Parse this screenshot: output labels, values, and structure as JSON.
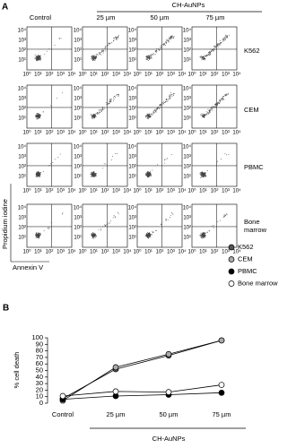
{
  "panel_a": {
    "label": "A",
    "group_header": "CH-AuNPs",
    "columns": [
      "Control",
      "25 µm",
      "50 µm",
      "75 µm"
    ],
    "rows": [
      "K562",
      "CEM",
      "PBMC",
      "Bone marrow"
    ],
    "y_axis_label": "Propidium iodine",
    "x_axis_label": "Annexin V",
    "axis_ticks": [
      "10⁰",
      "10¹",
      "10²",
      "10³",
      "10⁴"
    ]
  },
  "panel_b_label": "B",
  "chart_data": {
    "type": "line",
    "ylabel": "% cell death",
    "xlabel": "CH-AuNPs",
    "categories": [
      "Control",
      "25 µm",
      "50 µm",
      "75 µm"
    ],
    "series": [
      {
        "name": "K562",
        "color": "#555555",
        "values": [
          7,
          52,
          73,
          96
        ]
      },
      {
        "name": "CEM",
        "color": "#aaaaaa",
        "values": [
          4,
          55,
          75,
          96
        ]
      },
      {
        "name": "PBMC",
        "color": "#000000",
        "values": [
          6,
          11,
          13,
          16
        ]
      },
      {
        "name": "Bone marrow",
        "color": "#ffffff",
        "values": [
          11,
          18,
          17,
          28
        ]
      }
    ],
    "ylim": [
      0,
      100
    ],
    "yticks": [
      0,
      10,
      20,
      30,
      40,
      50,
      60,
      70,
      80,
      90,
      100
    ],
    "legend": "right"
  }
}
